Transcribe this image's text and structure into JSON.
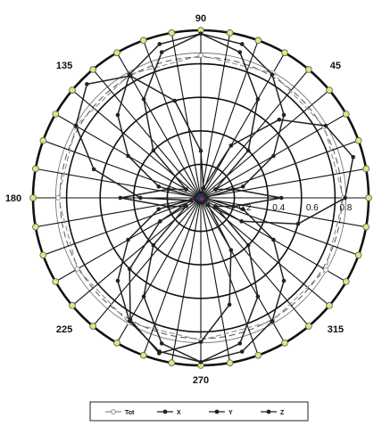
{
  "chart_data": {
    "type": "line",
    "subtype": "polar",
    "theta_unit": "degrees",
    "r_range": [
      0,
      1.0
    ],
    "angle_tick_labels": [
      "90",
      "45",
      "180",
      "135",
      "225",
      "270",
      "315"
    ],
    "angle_tick_values": [
      90,
      45,
      180,
      135,
      225,
      270,
      315
    ],
    "radial_tick_labels": [
      "0.2",
      "0.4",
      "0.6",
      "0.8"
    ],
    "radial_tick_values": [
      0.2,
      0.4,
      0.6,
      0.8
    ],
    "angular_gridlines_every_deg": 10,
    "grid": true,
    "legend_position": "bottom",
    "series": [
      {
        "name": "Tot",
        "marker": "circle-open",
        "color": "#8c8c8c",
        "theta": [
          0,
          30,
          60,
          90,
          120,
          150,
          180,
          210,
          240,
          270,
          300,
          330
        ],
        "r": [
          0.85,
          0.85,
          0.86,
          0.85,
          0.85,
          0.86,
          0.85,
          0.85,
          0.86,
          0.85,
          0.85,
          0.86
        ]
      },
      {
        "name": "X",
        "marker": "dot",
        "color": "#222222",
        "theta": [
          0,
          15,
          30,
          45,
          60,
          75,
          90,
          105,
          120,
          135,
          150,
          165,
          180,
          195,
          210,
          225,
          240,
          255,
          270,
          285,
          300,
          315,
          330,
          345
        ],
        "r": [
          0.02,
          0.26,
          0.5,
          0.7,
          0.85,
          0.95,
          0.98,
          0.95,
          0.85,
          0.7,
          0.5,
          0.26,
          0.02,
          0.26,
          0.5,
          0.7,
          0.85,
          0.95,
          0.98,
          0.95,
          0.85,
          0.7,
          0.5,
          0.26
        ]
      },
      {
        "name": "Y",
        "marker": "dot",
        "color": "#222222",
        "theta": [
          0,
          15,
          30,
          45,
          60,
          75,
          90,
          105,
          120,
          135,
          150,
          165,
          180,
          195,
          210,
          225,
          240,
          255,
          270,
          285,
          300,
          315,
          330,
          345
        ],
        "r": [
          0.86,
          0.94,
          0.86,
          0.66,
          0.36,
          0.06,
          0.28,
          0.6,
          0.84,
          0.96,
          0.86,
          0.66,
          0.36,
          0.06,
          0.28,
          0.6,
          0.84,
          0.96,
          0.86,
          0.66,
          0.36,
          0.06,
          0.28,
          0.6
        ]
      },
      {
        "name": "Z",
        "marker": "dot",
        "color": "#222222",
        "theta": [
          0,
          15,
          30,
          45,
          60,
          75,
          90,
          105,
          120,
          135,
          150,
          165,
          180,
          195,
          210,
          225,
          240,
          255,
          270,
          285,
          300,
          315,
          330,
          345
        ],
        "r": [
          0.48,
          0.2,
          0.1,
          0.4,
          0.68,
          0.9,
          0.98,
          0.9,
          0.68,
          0.4,
          0.1,
          0.2,
          0.48,
          0.2,
          0.1,
          0.4,
          0.68,
          0.9,
          0.98,
          0.9,
          0.68,
          0.4,
          0.1,
          0.2
        ]
      }
    ]
  }
}
